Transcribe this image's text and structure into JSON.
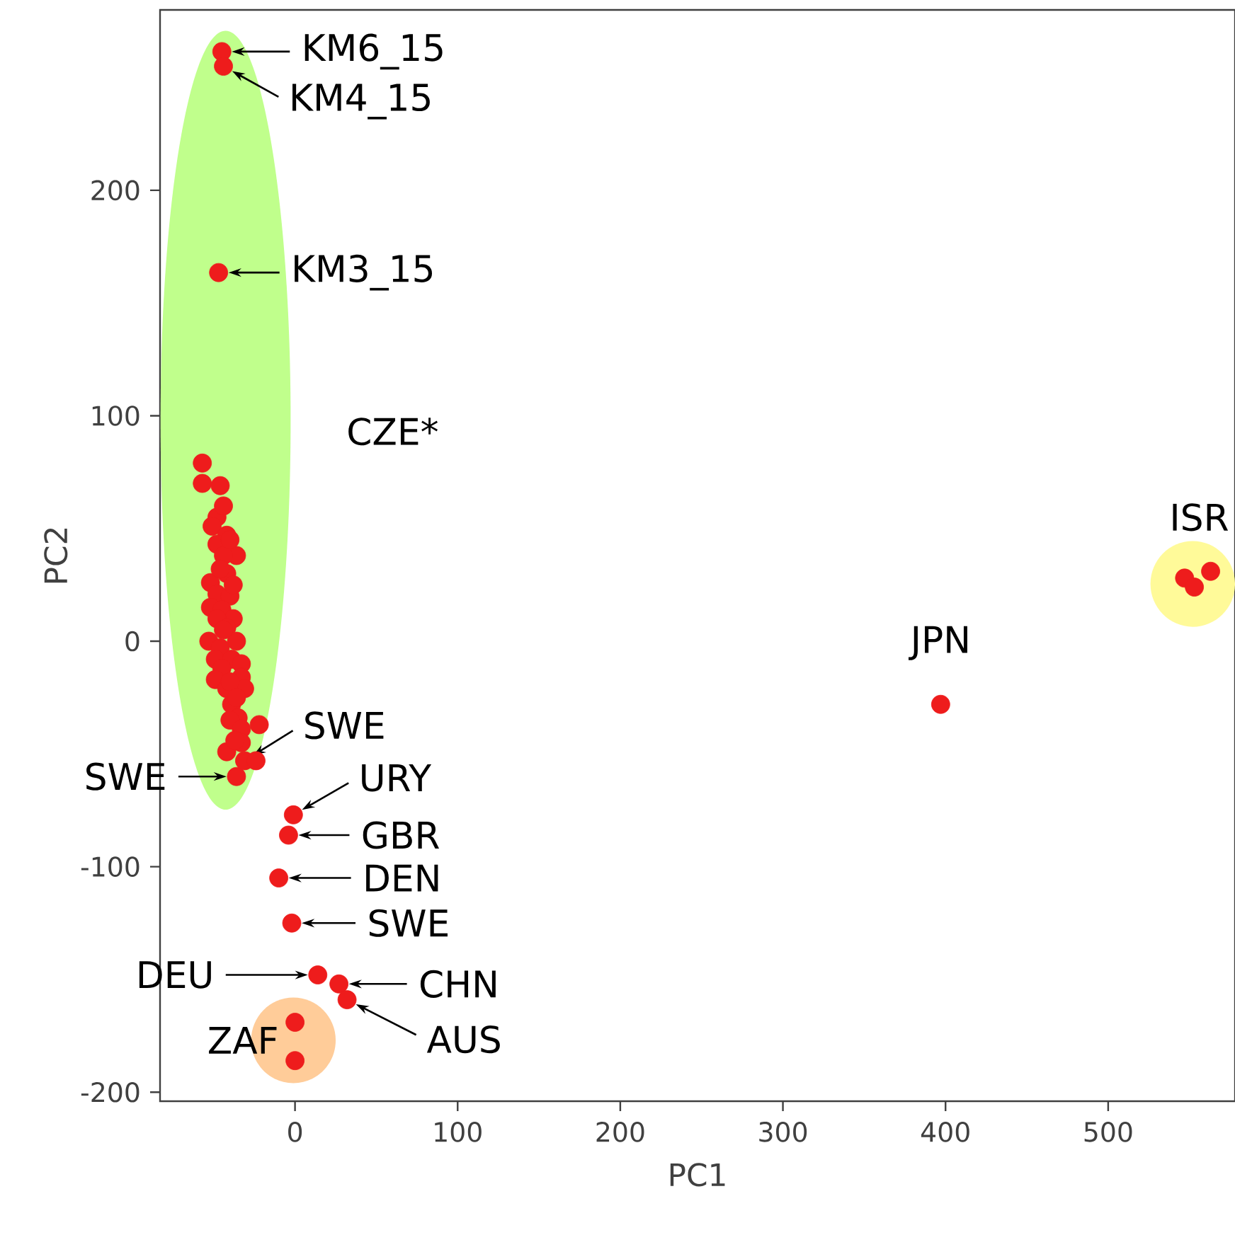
{
  "chart_data": {
    "type": "scatter",
    "xlabel": "PC1",
    "ylabel": "PC2",
    "xlim": [
      -83,
      578
    ],
    "ylim": [
      -204,
      280
    ],
    "xticks": [
      0,
      100,
      200,
      300,
      400,
      500
    ],
    "yticks": [
      -200,
      -100,
      0,
      100,
      200
    ],
    "grid": false,
    "marker": "circle",
    "color": "#ee1c1c",
    "x": [
      -45,
      -44,
      -47,
      -57,
      -57,
      -46,
      -48,
      -51,
      -42,
      -48,
      -36,
      -44,
      -42,
      -52,
      -48,
      -40,
      -52,
      -45,
      -38,
      -48,
      -42,
      -53,
      -36,
      -46,
      -49,
      -39,
      -33,
      -45,
      -33,
      -49,
      -42,
      -31,
      -39,
      -35,
      -40,
      -22,
      -33,
      -33,
      -42,
      -31,
      -24,
      -36,
      -44,
      -40,
      -46,
      -38,
      -44,
      -40,
      -36,
      -37,
      -1,
      -4,
      -10,
      -2,
      14,
      27,
      32,
      0,
      0,
      397,
      547,
      553,
      563
    ],
    "values": [
      261.5,
      255,
      163.5,
      79,
      70,
      69,
      55,
      51,
      47,
      43,
      38,
      38,
      30,
      26,
      21,
      20,
      15,
      14,
      10,
      10,
      6,
      0,
      0,
      -3,
      -8,
      -8,
      -10,
      -12,
      -16,
      -17,
      -21,
      -21,
      -28,
      -34,
      -35,
      -37,
      -39,
      -45,
      -49,
      -53,
      -53,
      -60,
      60,
      45,
      32,
      25,
      5,
      -18,
      -25,
      -44,
      -77,
      -86,
      -105,
      -125,
      -148,
      -152,
      -159,
      -169,
      -186,
      -28,
      28,
      24,
      31
    ],
    "annotations": [
      {
        "text": "KM6_15",
        "x": -45,
        "y": 261.5
      },
      {
        "text": "KM4_15",
        "x": -44,
        "y": 255
      },
      {
        "text": "KM3_15",
        "x": -47,
        "y": 163.5
      },
      "CZE*",
      {
        "text": "SWE",
        "x": -31,
        "y": -53
      },
      {
        "text": "SWE",
        "x": -36,
        "y": -60
      },
      {
        "text": "URY",
        "x": -1,
        "y": -77
      },
      {
        "text": "GBR",
        "x": -4,
        "y": -86
      },
      {
        "text": "DEN",
        "x": -10,
        "y": -105
      },
      {
        "text": "SWE",
        "x": -2,
        "y": -125
      },
      {
        "text": "DEU",
        "x": 14,
        "y": -148
      },
      {
        "text": "CHN",
        "x": 27,
        "y": -152
      },
      {
        "text": "AUS",
        "x": 32,
        "y": -159
      },
      "ZAF",
      {
        "text": "JPN",
        "x": 397,
        "y": -28
      },
      "ISR"
    ]
  }
}
